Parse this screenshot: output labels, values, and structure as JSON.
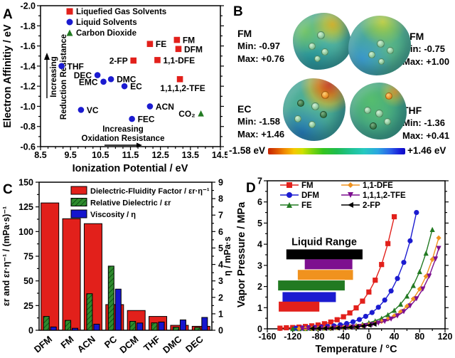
{
  "chart_data": [
    {
      "panel_label": "A",
      "type": "scatter",
      "xlabel": "Ionization Potential / eV",
      "ylabel": "Electron Affinitiy / eV",
      "xlim": [
        8.5,
        14.5
      ],
      "ylim_top_to_bottom": [
        -2.0,
        -0.6
      ],
      "x_ticks": [
        8.5,
        9.5,
        10.5,
        11.5,
        12.5,
        13.5,
        14.5
      ],
      "y_ticks": [
        -2.0,
        -1.8,
        -1.6,
        -1.4,
        -1.2,
        -1.0,
        -0.8,
        -0.6
      ],
      "series": [
        {
          "name": "Liquefied Gas Solvents",
          "marker": "square",
          "color": "#E2201B",
          "points": [
            {
              "label": "FE",
              "x": 12.15,
              "y": -1.62,
              "side": "right"
            },
            {
              "label": "FM",
              "x": 13.05,
              "y": -1.66,
              "side": "right"
            },
            {
              "label": "DFM",
              "x": 13.1,
              "y": -1.57,
              "side": "right"
            },
            {
              "label": "2-FP",
              "x": 11.6,
              "y": -1.455,
              "side": "left"
            },
            {
              "label": "1,1-DFE",
              "x": 12.4,
              "y": -1.46,
              "side": "right"
            },
            {
              "label": "1,1,1,2-TFE",
              "x": 13.15,
              "y": -1.27,
              "side": "below"
            }
          ]
        },
        {
          "name": "Liquid Solvents",
          "marker": "circle",
          "color": "#1B1BD0",
          "points": [
            {
              "label": "THF",
              "x": 9.2,
              "y": -1.4,
              "side": "right"
            },
            {
              "label": "DEC",
              "x": 10.4,
              "y": -1.31,
              "side": "left"
            },
            {
              "label": "EMC",
              "x": 10.6,
              "y": -1.245,
              "side": "left"
            },
            {
              "label": "DMC",
              "x": 10.85,
              "y": -1.27,
              "side": "right"
            },
            {
              "label": "EC",
              "x": 11.3,
              "y": -1.2,
              "side": "right"
            },
            {
              "label": "VC",
              "x": 9.85,
              "y": -0.965,
              "side": "right"
            },
            {
              "label": "ACN",
              "x": 12.15,
              "y": -1.0,
              "side": "right"
            },
            {
              "label": "FEC",
              "x": 11.55,
              "y": -0.875,
              "side": "right"
            }
          ]
        },
        {
          "name": "Carbon Dioxide",
          "marker": "triangle-up",
          "color": "#227A22",
          "points": [
            {
              "label": "CO₂",
              "x": 13.85,
              "y": -0.93,
              "side": "left"
            }
          ]
        }
      ],
      "annotations": {
        "v1": "Increasing",
        "v2": "Reduction Resistance",
        "h1": "Increasing",
        "h2": "Oxidation Resistance"
      }
    },
    {
      "panel_label": "C",
      "type": "bar",
      "categories": [
        "DFM",
        "FM",
        "ACN",
        "PC",
        "DCM",
        "THF",
        "DMC",
        "DEC"
      ],
      "left_axis": {
        "label": "εr and εr·η⁻¹ / (mPa·s)⁻¹",
        "ticks": [
          0,
          25,
          50,
          75,
          100,
          125,
          150
        ],
        "range": [
          0,
          150
        ]
      },
      "right_axis": {
        "label": "η / mPa·s",
        "ticks": [
          0,
          1,
          2,
          3,
          4,
          5,
          6,
          7,
          8,
          9
        ],
        "range": [
          0,
          9
        ]
      },
      "series": [
        {
          "name": "Dielectric-Fluidity Factor / εr·η⁻¹",
          "color": "#E2201B",
          "axis": "left",
          "style": "solid",
          "values": [
            129,
            113,
            108,
            26,
            20,
            14,
            5,
            4
          ]
        },
        {
          "name": "Relative Dielectric / εr",
          "color": "#2E8B2E",
          "axis": "left",
          "style": "hatched",
          "values": [
            14,
            10,
            37,
            65,
            9,
            7.5,
            3.1,
            2.8
          ]
        },
        {
          "name": "Viscosity / η",
          "color": "#1515CD",
          "axis": "right",
          "style": "solid",
          "values": [
            0.2,
            0.12,
            0.37,
            2.5,
            0.44,
            0.5,
            0.63,
            0.78
          ]
        }
      ]
    },
    {
      "panel_label": "D",
      "type": "line",
      "xlabel": "Temperature / °C",
      "ylabel": "Vapor Pressure / MPa",
      "xlim": [
        -160,
        120
      ],
      "ylim": [
        0,
        7
      ],
      "x_ticks": [
        -160,
        -120,
        -80,
        -40,
        0,
        40,
        80,
        120
      ],
      "y_ticks": [
        0,
        1,
        2,
        3,
        4,
        5,
        6,
        7
      ],
      "series": [
        {
          "name": "FM",
          "color": "#E2201B",
          "marker": "square",
          "points": [
            [
              -140,
              0.03
            ],
            [
              -130,
              0.05
            ],
            [
              -120,
              0.06
            ],
            [
              -110,
              0.08
            ],
            [
              -100,
              0.11
            ],
            [
              -90,
              0.14
            ],
            [
              -80,
              0.18
            ],
            [
              -70,
              0.24
            ],
            [
              -60,
              0.32
            ],
            [
              -50,
              0.43
            ],
            [
              -40,
              0.57
            ],
            [
              -30,
              0.75
            ],
            [
              -20,
              0.99
            ],
            [
              -10,
              1.31
            ],
            [
              0,
              1.74
            ],
            [
              10,
              2.3
            ],
            [
              20,
              3.04
            ],
            [
              30,
              4.03
            ],
            [
              40,
              5.3
            ]
          ]
        },
        {
          "name": "DFM",
          "color": "#1B1BD0",
          "marker": "circle",
          "points": [
            [
              -115,
              0.03
            ],
            [
              -105,
              0.04
            ],
            [
              -95,
              0.05
            ],
            [
              -85,
              0.06
            ],
            [
              -75,
              0.08
            ],
            [
              -65,
              0.11
            ],
            [
              -55,
              0.14
            ],
            [
              -45,
              0.19
            ],
            [
              -35,
              0.25
            ],
            [
              -25,
              0.33
            ],
            [
              -15,
              0.44
            ],
            [
              -5,
              0.59
            ],
            [
              5,
              0.77
            ],
            [
              15,
              1.02
            ],
            [
              25,
              1.36
            ],
            [
              35,
              1.79
            ],
            [
              45,
              2.38
            ],
            [
              55,
              3.14
            ],
            [
              65,
              4.16
            ],
            [
              75,
              5.5
            ]
          ]
        },
        {
          "name": "FE",
          "color": "#227A22",
          "marker": "triangle-up",
          "points": [
            [
              -120,
              0.01
            ],
            [
              -110,
              0.013
            ],
            [
              -100,
              0.017
            ],
            [
              -90,
              0.023
            ],
            [
              -80,
              0.03
            ],
            [
              -70,
              0.04
            ],
            [
              -60,
              0.05
            ],
            [
              -50,
              0.07
            ],
            [
              -40,
              0.09
            ],
            [
              -30,
              0.12
            ],
            [
              -20,
              0.16
            ],
            [
              -10,
              0.22
            ],
            [
              0,
              0.29
            ],
            [
              10,
              0.38
            ],
            [
              20,
              0.5
            ],
            [
              30,
              0.67
            ],
            [
              40,
              0.88
            ],
            [
              50,
              1.17
            ],
            [
              60,
              1.55
            ],
            [
              70,
              2.05
            ],
            [
              80,
              2.71
            ],
            [
              90,
              3.58
            ],
            [
              100,
              4.7
            ]
          ]
        },
        {
          "name": "1,1-DFE",
          "color": "#F0921E",
          "marker": "diamond",
          "points": [
            [
              -110,
              0.009
            ],
            [
              -100,
              0.012
            ],
            [
              -90,
              0.016
            ],
            [
              -80,
              0.021
            ],
            [
              -70,
              0.028
            ],
            [
              -60,
              0.037
            ],
            [
              -50,
              0.049
            ],
            [
              -40,
              0.065
            ],
            [
              -30,
              0.086
            ],
            [
              -20,
              0.11
            ],
            [
              -10,
              0.15
            ],
            [
              0,
              0.2
            ],
            [
              10,
              0.26
            ],
            [
              20,
              0.35
            ],
            [
              30,
              0.46
            ],
            [
              40,
              0.61
            ],
            [
              50,
              0.81
            ],
            [
              60,
              1.07
            ],
            [
              70,
              1.42
            ],
            [
              80,
              1.88
            ],
            [
              90,
              2.48
            ],
            [
              100,
              3.28
            ],
            [
              110,
              4.3
            ]
          ]
        },
        {
          "name": "1,1,1,2-TFE",
          "color": "#7D0F8F",
          "marker": "triangle-down",
          "points": [
            [
              -105,
              0.009
            ],
            [
              -95,
              0.012
            ],
            [
              -85,
              0.016
            ],
            [
              -75,
              0.021
            ],
            [
              -65,
              0.028
            ],
            [
              -55,
              0.037
            ],
            [
              -45,
              0.049
            ],
            [
              -35,
              0.065
            ],
            [
              -25,
              0.087
            ],
            [
              -15,
              0.11
            ],
            [
              -5,
              0.15
            ],
            [
              5,
              0.2
            ],
            [
              15,
              0.27
            ],
            [
              25,
              0.35
            ],
            [
              35,
              0.46
            ],
            [
              45,
              0.61
            ],
            [
              55,
              0.81
            ],
            [
              65,
              1.08
            ],
            [
              75,
              1.42
            ],
            [
              85,
              1.88
            ],
            [
              95,
              2.49
            ],
            [
              105,
              3.3
            ],
            [
              110,
              3.8
            ]
          ]
        },
        {
          "name": "2-FP",
          "color": "#000000",
          "marker": "triangle-left",
          "points": [
            [
              -90,
              0.012
            ],
            [
              -80,
              0.016
            ],
            [
              -70,
              0.021
            ],
            [
              -60,
              0.028
            ],
            [
              -50,
              0.038
            ],
            [
              -40,
              0.052
            ],
            [
              -30,
              0.07
            ],
            [
              -20,
              0.094
            ],
            [
              -10,
              0.13
            ],
            [
              0,
              0.17
            ],
            [
              8,
              0.22
            ]
          ]
        }
      ],
      "inset": {
        "title": "Liquid Range",
        "bars": [
          {
            "name": "2-FP",
            "color": "#000000",
            "t": [
              -130,
              -10
            ],
            "y": 3.52
          },
          {
            "name": "1,1,1,2-TFE",
            "color": "#7D0F8F",
            "t": [
              -101,
              -26
            ],
            "y": 3.05
          },
          {
            "name": "1,1-DFE",
            "color": "#F0921E",
            "t": [
              -112,
              -25
            ],
            "y": 2.55
          },
          {
            "name": "FE",
            "color": "#227A22",
            "t": [
              -143,
              -38
            ],
            "y": 2.05
          },
          {
            "name": "DFM",
            "color": "#1B1BD0",
            "t": [
              -136,
              -52
            ],
            "y": 1.5
          },
          {
            "name": "FM",
            "color": "#E2201B",
            "t": [
              -142,
              -78
            ],
            "y": 1.05
          }
        ]
      }
    }
  ],
  "panelB": {
    "label": "B",
    "molecules": [
      {
        "name": "FM",
        "min": "Min: -0.97",
        "max": "Max: +0.76"
      },
      {
        "name": "DFM",
        "min": "Min: -0.75",
        "max": "Max: +1.00"
      },
      {
        "name": "EC",
        "min": "Min: -1.58",
        "max": "Max: +1.46"
      },
      {
        "name": "THF",
        "min": "Min: -1.36",
        "max": "Max: +0.41"
      }
    ],
    "colorbar": {
      "left": "-1.58 eV",
      "right": "+1.46 eV"
    }
  }
}
